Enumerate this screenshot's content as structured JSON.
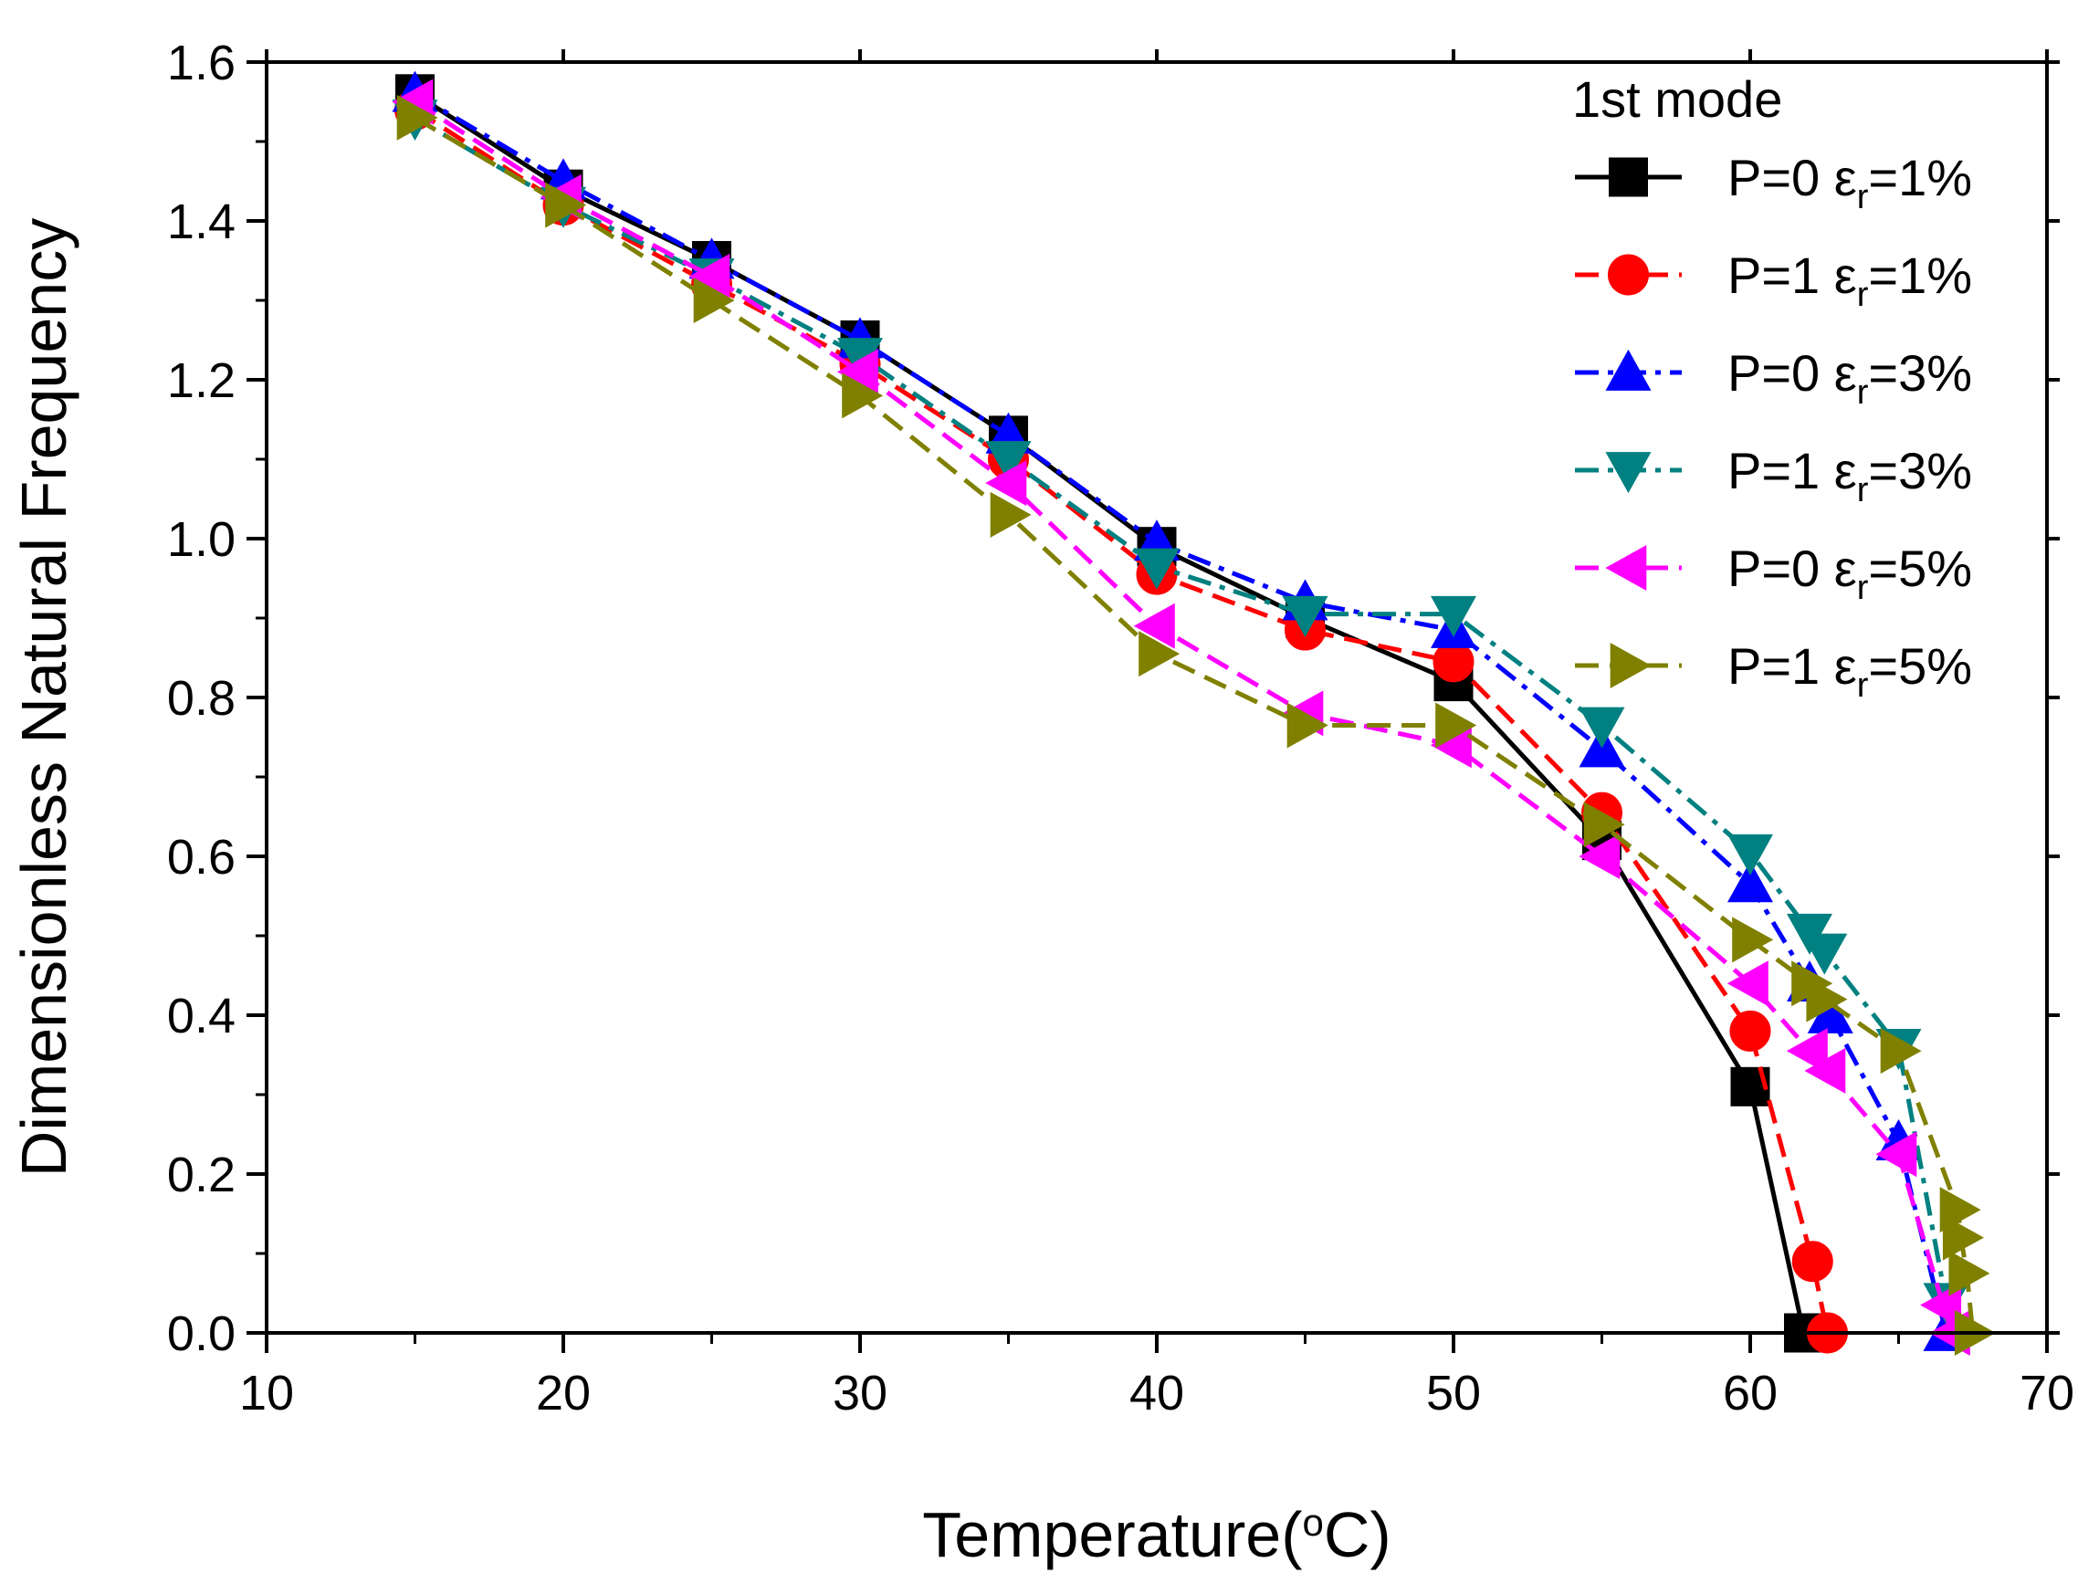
{
  "chart_data": {
    "type": "line",
    "title": "",
    "xlabel": "Temperature(",
    "xlabel_sup": "o",
    "xlabel_unit": "C)",
    "ylabel": "Dimensionless Natural Frequency",
    "xlim": [
      10,
      70
    ],
    "ylim": [
      0.0,
      1.6
    ],
    "x_ticks": [
      10,
      20,
      30,
      40,
      50,
      60,
      70
    ],
    "x_tick_labels": [
      "10",
      "20",
      "30",
      "40",
      "50",
      "60",
      "70"
    ],
    "y_ticks": [
      0,
      0.2,
      0.4,
      0.6,
      0.8,
      1.0,
      1.2,
      1.4,
      1.6
    ],
    "y_tick_labels": [
      "0.0",
      "0.2",
      "0.4",
      "0.6",
      "0.8",
      "1.0",
      "1.2",
      "1.4",
      "1.6"
    ],
    "grid": false,
    "legend_position": "top-right",
    "legend_title": "1st mode",
    "series": [
      {
        "name": "P=0 εr=1%",
        "label_main": "P=0 ε",
        "label_sub": "r",
        "label_tail": "=1%",
        "color": "#000000",
        "marker": "square",
        "dash": "solid",
        "x": [
          15,
          20,
          25,
          30,
          35,
          40,
          45,
          50,
          55,
          60,
          61.8
        ],
        "y": [
          1.56,
          1.44,
          1.35,
          1.25,
          1.13,
          0.99,
          0.9,
          0.82,
          0.62,
          0.31,
          0.0
        ]
      },
      {
        "name": "P=1 εr=1%",
        "label_main": "P=1 ε",
        "label_sub": "r",
        "label_tail": "=1%",
        "color": "#ff0000",
        "marker": "circle",
        "dash": "dash",
        "x": [
          15,
          20,
          25,
          30,
          35,
          40,
          45,
          50,
          55,
          60,
          62.1,
          62.6
        ],
        "y": [
          1.54,
          1.42,
          1.32,
          1.22,
          1.1,
          0.955,
          0.885,
          0.845,
          0.655,
          0.38,
          0.09,
          0.0
        ]
      },
      {
        "name": "P=0 εr=3%",
        "label_main": "P=0 ε",
        "label_sub": "r",
        "label_tail": "=3%",
        "color": "#0000ff",
        "marker": "triangle-up",
        "dash": "dashdot",
        "x": [
          15,
          20,
          25,
          30,
          35,
          40,
          45,
          50,
          55,
          60,
          62,
          62.7,
          65,
          66.6
        ],
        "y": [
          1.56,
          1.45,
          1.35,
          1.25,
          1.13,
          0.995,
          0.92,
          0.885,
          0.735,
          0.565,
          0.44,
          0.4,
          0.24,
          0.0
        ]
      },
      {
        "name": "P=1 εr=3%",
        "label_main": "P=1 ε",
        "label_sub": "r",
        "label_tail": "=3%",
        "color": "#008080",
        "marker": "triangle-down",
        "dash": "dashdot",
        "x": [
          15,
          20,
          25,
          30,
          35,
          40,
          45,
          50,
          55,
          60,
          62,
          62.5,
          65,
          66.6
        ],
        "y": [
          1.53,
          1.42,
          1.33,
          1.23,
          1.1,
          0.965,
          0.905,
          0.905,
          0.765,
          0.605,
          0.505,
          0.48,
          0.36,
          0.04
        ]
      },
      {
        "name": "P=0 εr=5%",
        "label_main": "P=0 ε",
        "label_sub": "r",
        "label_tail": "=5%",
        "color": "#ff00ff",
        "marker": "triangle-left",
        "dash": "dash",
        "x": [
          15,
          20,
          25,
          30,
          35,
          40,
          45,
          50,
          55,
          60,
          62,
          62.6,
          65,
          66.5,
          66.8
        ],
        "y": [
          1.55,
          1.43,
          1.33,
          1.21,
          1.07,
          0.89,
          0.78,
          0.74,
          0.6,
          0.44,
          0.355,
          0.33,
          0.225,
          0.035,
          0.0
        ]
      },
      {
        "name": "P=1 εr=5%",
        "label_main": "P=1 ε",
        "label_sub": "r",
        "label_tail": "=5%",
        "color": "#808000",
        "marker": "triangle-right",
        "dash": "dash",
        "x": [
          15,
          20,
          25,
          30,
          35,
          40,
          45,
          50,
          55,
          60,
          62,
          62.5,
          65,
          67,
          67.1,
          67.3,
          67.5
        ],
        "y": [
          1.53,
          1.42,
          1.3,
          1.18,
          1.03,
          0.855,
          0.765,
          0.765,
          0.64,
          0.495,
          0.44,
          0.42,
          0.355,
          0.155,
          0.12,
          0.075,
          0.0
        ]
      }
    ]
  }
}
